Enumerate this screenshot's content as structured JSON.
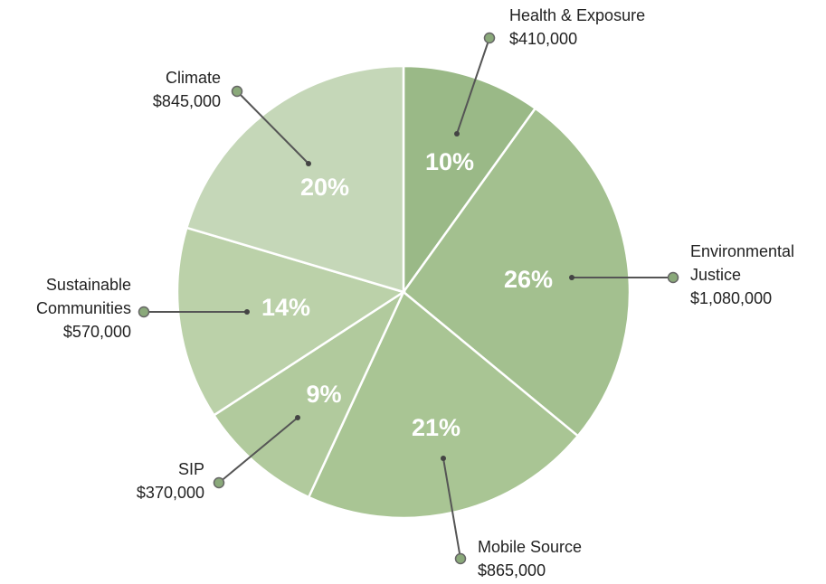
{
  "chart_data": {
    "type": "pie",
    "categories": [
      "Health & Exposure",
      "Environmental Justice",
      "Mobile Source",
      "SIP",
      "Sustainable Communities",
      "Climate"
    ],
    "values": [
      410000,
      1080000,
      865000,
      370000,
      570000,
      845000
    ],
    "value_labels": [
      "$410,000",
      "$1,080,000",
      "$865,000",
      "$370,000",
      "$570,000",
      "$845,000"
    ],
    "percent_labels": [
      "10%",
      "26%",
      "21%",
      "9%",
      "14%",
      "20%"
    ],
    "colors": [
      "#9ab987",
      "#a3c08f",
      "#a9c594",
      "#b1ca9d",
      "#bbd1a9",
      "#c5d7b8"
    ]
  }
}
